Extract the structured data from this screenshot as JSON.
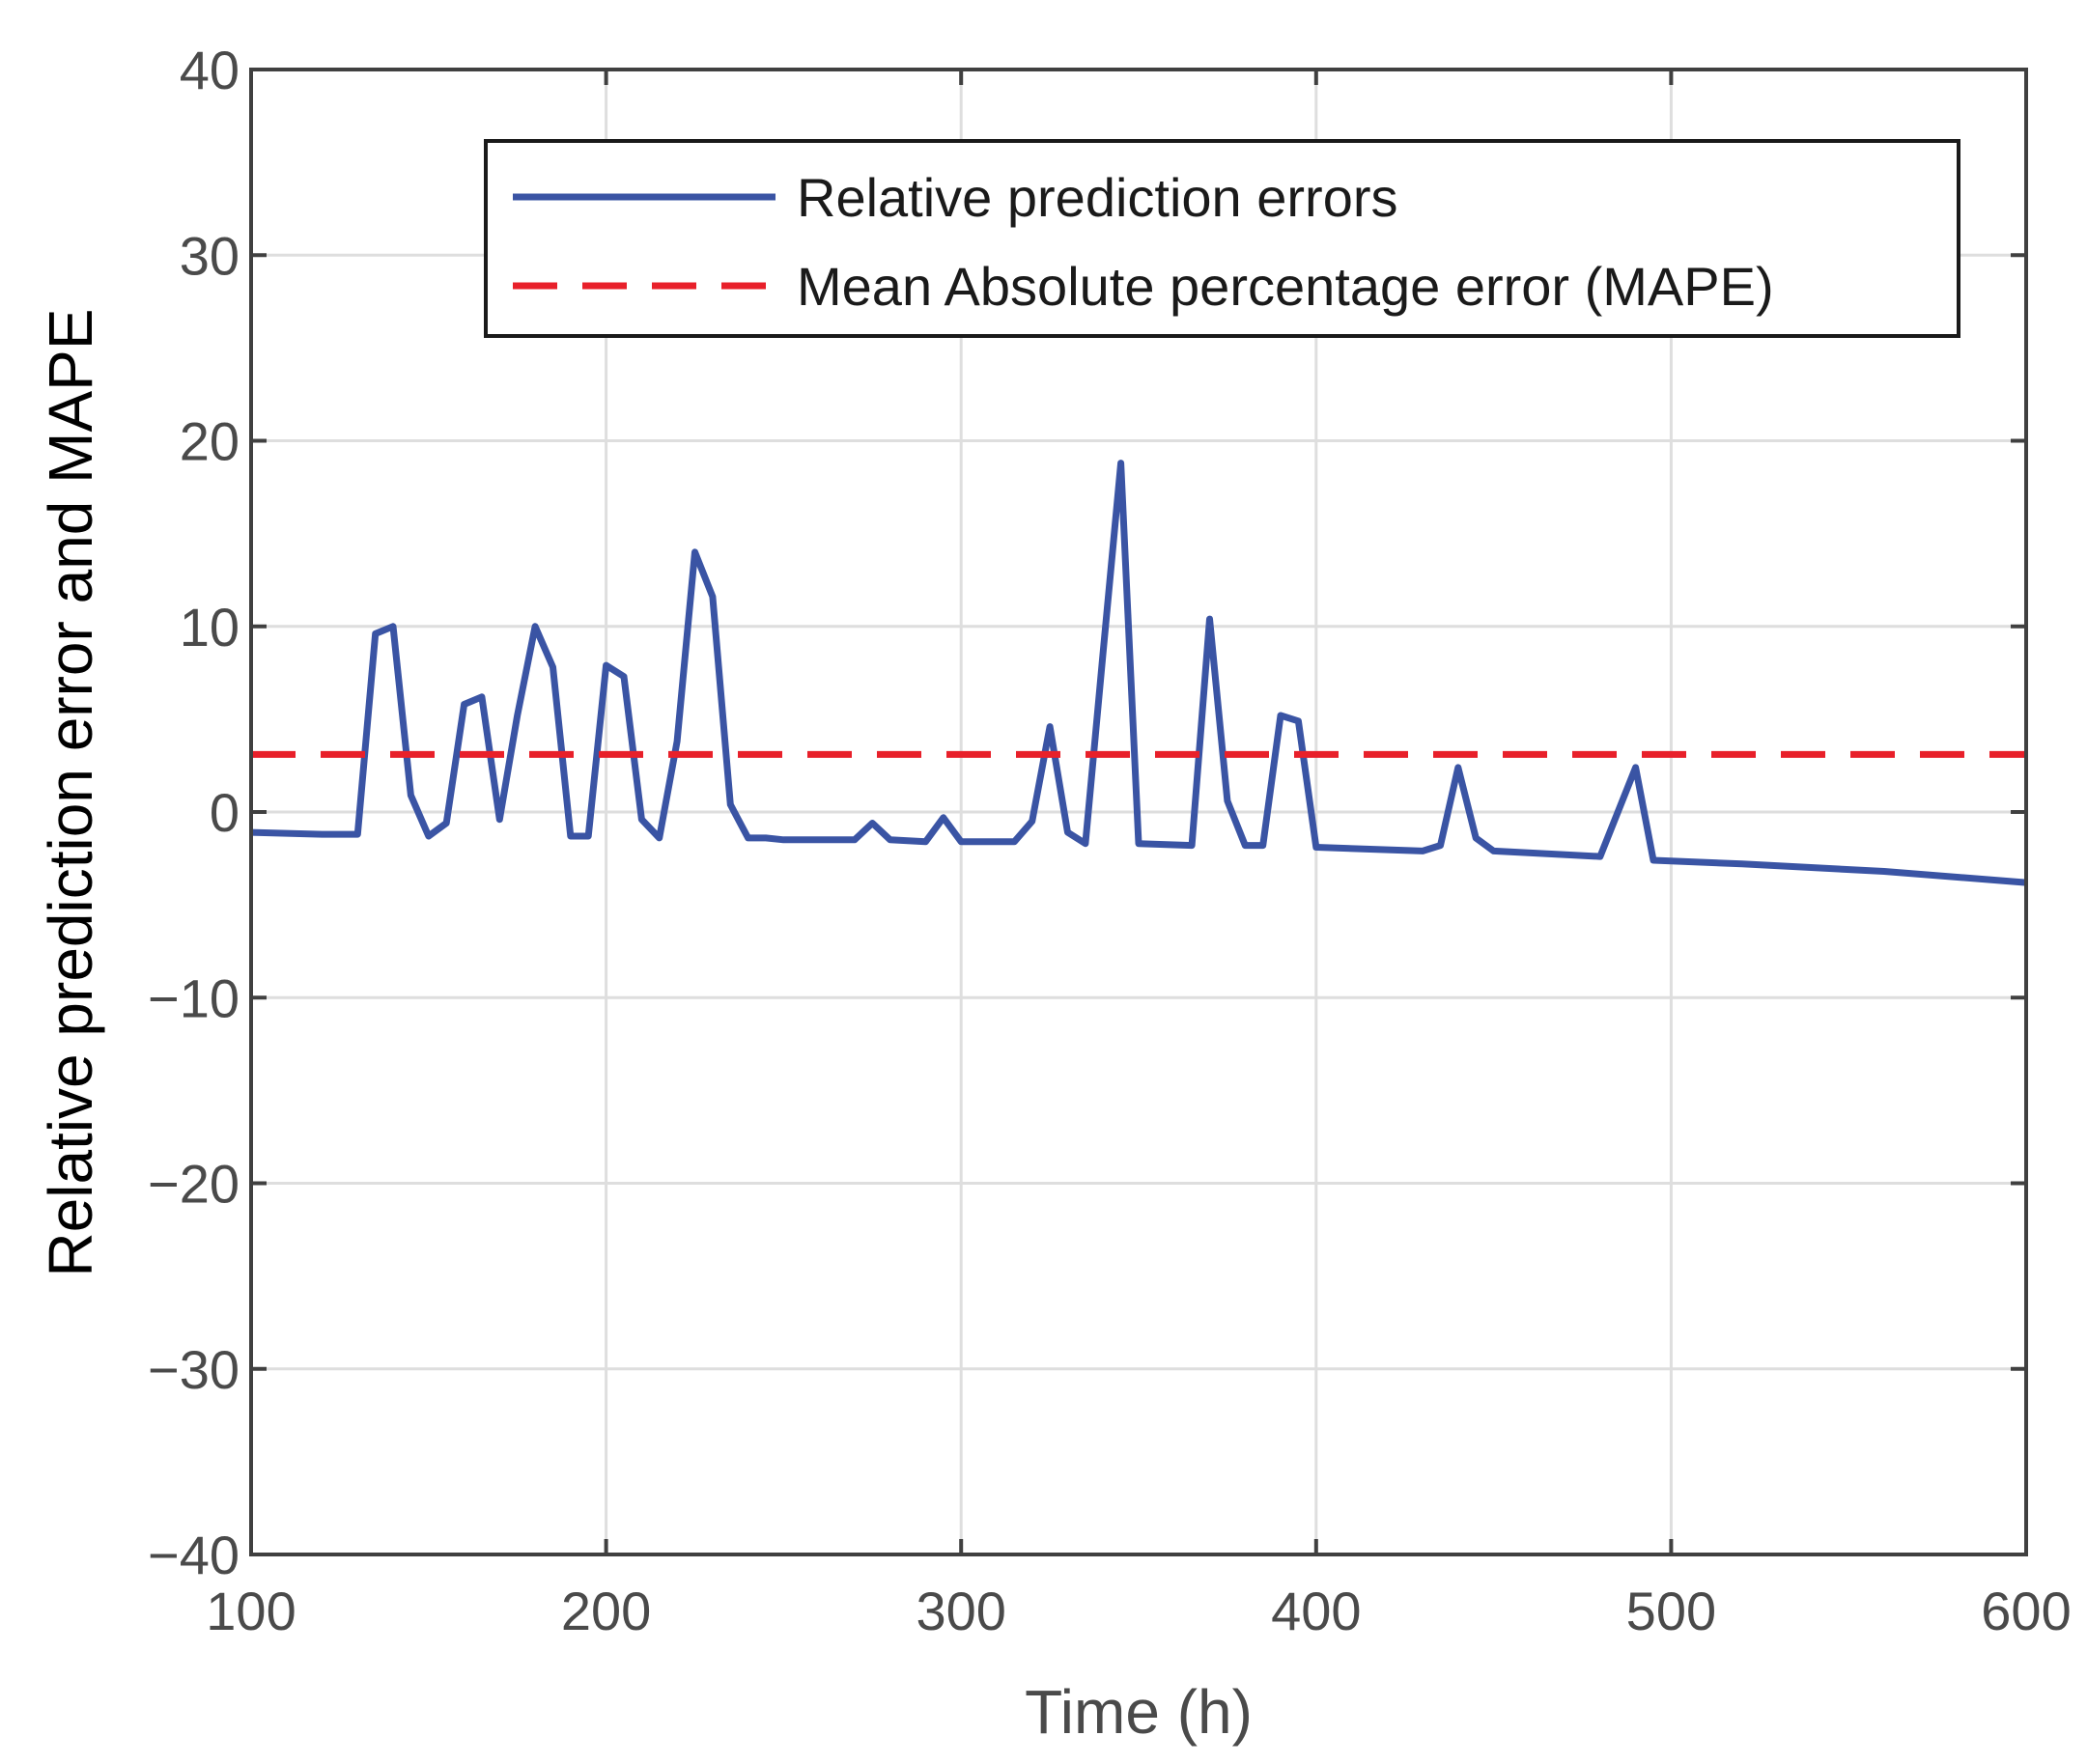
{
  "chart_data": {
    "type": "line",
    "title": "",
    "xlabel": "Time (h)",
    "ylabel": "Relative prediction error and MAPE",
    "xlim": [
      100,
      600
    ],
    "ylim": [
      -40,
      40
    ],
    "xticks": [
      100,
      200,
      300,
      400,
      500,
      600
    ],
    "yticks": [
      -40,
      -30,
      -20,
      -10,
      0,
      10,
      20,
      30,
      40
    ],
    "xtick_labels": [
      "100",
      "200",
      "300",
      "400",
      "500",
      "600"
    ],
    "ytick_labels": [
      "−40",
      "−30",
      "−20",
      "−10",
      "0",
      "10",
      "20",
      "30",
      "40"
    ],
    "grid": true,
    "legend_position": "top-right",
    "series": [
      {
        "name": "Relative prediction errors",
        "color": "#3a54a4",
        "style": "solid",
        "x": [
          100,
          120,
          130,
          135,
          140,
          145,
          150,
          155,
          160,
          165,
          170,
          175,
          180,
          185,
          190,
          195,
          200,
          205,
          210,
          215,
          220,
          225,
          230,
          235,
          240,
          245,
          250,
          270,
          275,
          280,
          290,
          295,
          300,
          310,
          315,
          320,
          325,
          330,
          335,
          340,
          345,
          350,
          365,
          370,
          375,
          380,
          385,
          390,
          395,
          400,
          430,
          435,
          440,
          445,
          450,
          480,
          490,
          495,
          520,
          560,
          600
        ],
        "values": [
          -1.1,
          -1.2,
          -1.2,
          9.6,
          10.0,
          0.9,
          -1.3,
          -0.6,
          5.8,
          6.2,
          -0.4,
          5.2,
          10.0,
          7.8,
          -1.3,
          -1.3,
          7.9,
          7.3,
          -0.4,
          -1.4,
          3.8,
          14.0,
          11.6,
          0.4,
          -1.4,
          -1.4,
          -1.5,
          -1.5,
          -0.6,
          -1.5,
          -1.6,
          -0.3,
          -1.6,
          -1.6,
          -1.6,
          -0.5,
          4.6,
          -1.1,
          -1.7,
          8.6,
          18.8,
          -1.7,
          -1.8,
          10.4,
          0.6,
          -1.8,
          -1.8,
          5.2,
          4.9,
          -1.9,
          -2.1,
          -1.8,
          2.4,
          -1.4,
          -2.1,
          -2.4,
          2.4,
          -2.6,
          -2.8,
          -3.2,
          -3.8
        ]
      },
      {
        "name": "Mean Absolute percentage error (MAPE)",
        "color": "#e8202a",
        "style": "dashed",
        "x": [
          100,
          600
        ],
        "values": [
          3.1,
          3.1
        ]
      }
    ]
  }
}
